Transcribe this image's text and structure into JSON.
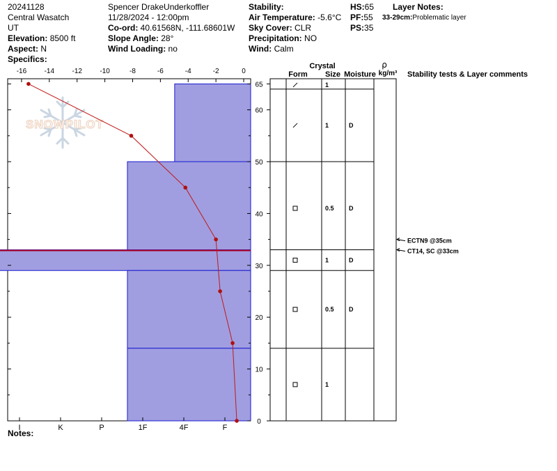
{
  "header": {
    "date": "20241128",
    "range": "Central Wasatch",
    "state": "UT",
    "elevation_label": "Elevation:",
    "elevation": "8500 ft",
    "aspect_label": "Aspect:",
    "aspect": "N",
    "specifics_label": "Specifics:",
    "observer": "Spencer DrakeUnderkoffler",
    "datetime": "11/28/2024 - 12:00pm",
    "coord_label": "Co-ord:",
    "coord": "40.61568N, -111.68601W",
    "slope_label": "Slope Angle:",
    "slope": "28°",
    "wind_loading_label": "Wind Loading:",
    "wind_loading": "no",
    "stability_label": "Stability:",
    "air_temp_label": "Air Temperature:",
    "air_temp": "-5.6°C",
    "sky_label": "Sky Cover:",
    "sky": "CLR",
    "precip_label": "Precipitation:",
    "precip": "NO",
    "wind_label": "Wind:",
    "wind": "Calm",
    "hs_label": "HS:",
    "hs": "65",
    "pf_label": "PF:",
    "pf": "55",
    "ps_label": "PS:",
    "ps": "35",
    "layer_notes_label": "Layer Notes:",
    "layer_note_range": "33-29cm:",
    "layer_note_text": "Problematic layer",
    "notes_label": "Notes:"
  },
  "watermark": {
    "text": "SNOWPILOT",
    "icon": "snowflake-icon"
  },
  "table_headers": {
    "crystal": "Crystal",
    "form": "Form",
    "size": "Size",
    "moisture": "Moisture",
    "rho": "ρ",
    "density_unit": "kg/m³",
    "stability": "Stability tests & Layer comments"
  },
  "chart_data": {
    "type": "snow-profile",
    "temp_axis": {
      "ticks": [
        -16,
        -14,
        -12,
        -10,
        -8,
        -6,
        -4,
        -2,
        0
      ],
      "range": [
        -17,
        0.5
      ]
    },
    "height_axis": {
      "ticks": [
        0,
        10,
        20,
        30,
        40,
        50,
        60,
        65
      ],
      "range": [
        0,
        66
      ]
    },
    "hardness_ticks": [
      "I",
      "K",
      "P",
      "1F",
      "4F",
      "F"
    ],
    "temperature_profile": [
      {
        "h": 65,
        "t": -15.5
      },
      {
        "h": 55,
        "t": -8.1
      },
      {
        "h": 45,
        "t": -4.2
      },
      {
        "h": 35,
        "t": -2.0
      },
      {
        "h": 25,
        "t": -1.7
      },
      {
        "h": 15,
        "t": -0.8
      },
      {
        "h": 0,
        "t": -0.5
      }
    ],
    "layers": [
      {
        "top": 65,
        "bottom": 50,
        "hardness": 1.85,
        "form_icon": "slash-icon",
        "size": "1",
        "moisture": "D",
        "label_h": 57
      },
      {
        "top": 50,
        "bottom": 33,
        "hardness": 3.0,
        "form_icon": "square-icon",
        "size": "0.5",
        "moisture": "D",
        "label_h": 41
      },
      {
        "top": 33,
        "bottom": 29,
        "hardness": 7.35,
        "form_icon": "square-icon",
        "size": "1",
        "moisture": "D",
        "label_h": 31
      },
      {
        "top": 29,
        "bottom": 14,
        "hardness": 3.0,
        "form_icon": "square-icon",
        "size": "0.5",
        "moisture": "D",
        "label_h": 21.5
      },
      {
        "top": 14,
        "bottom": 0,
        "hardness": 3.0,
        "form_icon": "square-icon",
        "size": "1",
        "moisture": "",
        "label_h": 7
      }
    ],
    "surface_layer": {
      "top": 65,
      "bottom": 64,
      "form_icon": "slash-icon",
      "size": "1"
    },
    "tests": [
      {
        "label": "ECTN9 @35cm",
        "h": 35
      },
      {
        "label": "CT14, SC @33cm",
        "h": 33
      }
    ],
    "problem_layer": [
      33,
      29
    ]
  }
}
